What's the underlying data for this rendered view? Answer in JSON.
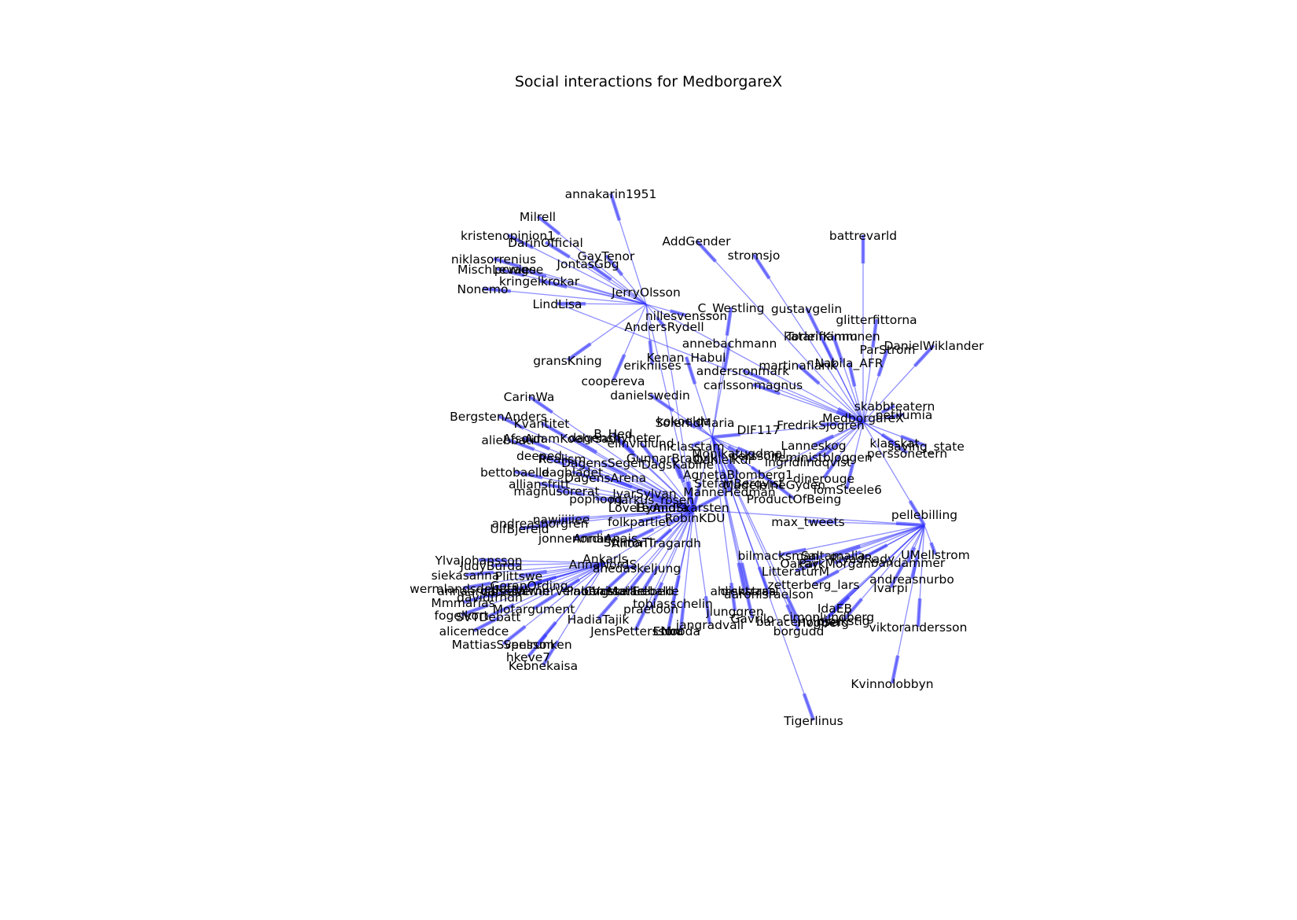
{
  "title": "Social interactions for MedborgareX",
  "colors": {
    "edge": "#3333ff",
    "label": "#000000",
    "background": "#ffffff"
  },
  "nodes": [
    "annakarin1951",
    "Milrell",
    "kristenopinion1",
    "DarinOfficial",
    "GayTenor",
    "niklasorrenius",
    "JontasGbg",
    "MischLevage",
    "pcwiese",
    "kringelkrokar",
    "Nonemo",
    "JerryOlsson",
    "AddGender",
    "stromsjo",
    "battrevarld",
    "LindLisa",
    "C_Westling",
    "gustavgelin",
    "nillesvensson",
    "AndersRydell",
    "glitterfittorna",
    "katarinamm",
    "TorleifKinnunen",
    "DanielWiklander",
    "ParStrom",
    "annebachmann",
    "gransKning",
    "Kenan_Habul",
    "erikniises",
    "martinaflarik",
    "Nabila_AFR",
    "andersronmark",
    "coopereva",
    "carlssonmagnus",
    "CarinWa",
    "danielswedin",
    "skabbteatern",
    "MedborgareX",
    "petilumia",
    "BergstenAnders",
    "Kvantitet",
    "kokoelda",
    "SolerlidMaria",
    "DIF117",
    "FredrikSjogren",
    "B_Hed",
    "aliebbati",
    "Afsoun",
    "AdamKoehrsadi",
    "elinvidlund",
    "Lanneskog",
    "klasskat",
    "saving_state",
    "dagensnyheter",
    "niclasstam",
    "Monikatugdmal",
    "persson",
    "feministbloggen",
    "perssonetern",
    "deeped",
    "Realism",
    "GunnarBradvik",
    "DagensSegel",
    "DagsKabine",
    "ingridlindqvist",
    "bettobaelle",
    "dagbladet",
    "DanielKdr",
    "AgnetaBlomberg1",
    "dinerouge",
    "alliansfritt",
    "DagensArena",
    "StefanBerqvist",
    "MadeleineGyden",
    "magnusorerat",
    "TomSteele6",
    "IvarSylvan",
    "ManneHedman",
    "ProductOfBeing",
    "pophoog",
    "markus_rosen",
    "LoveByAndra",
    "LeonidSkarsten",
    "RobinKDU",
    "andreasnorgren",
    "nawiiiiiee",
    "folkpartiet",
    "max_tweets",
    "pellebilling",
    "UlfBjereld",
    "jonnenordin",
    "AnnaAnais",
    "AntonTragardh",
    "StilmaTi",
    "bilmacksman",
    "Oakay",
    "Saltamalia",
    "ParkMorgan",
    "RiyadRady",
    "UMellstrom",
    "Ankarls",
    "bandammer",
    "YlvaJohansson",
    "JudyBurda",
    "AnnaNordS",
    "ahedaskeljung",
    "LitteraturM",
    "andreasnurbo",
    "siekasanna",
    "Plittswe",
    "zetterberg_lars",
    "Ivarpi",
    "wermlandsdebatt",
    "GoranOrding",
    "annaarvidsson",
    "danielalwin",
    "VernerVeinberg",
    "PaulVassaille",
    "disktrasa",
    "ahrenstrasl",
    "Mmmarias",
    "davidfrndh",
    "ChristerEdbald",
    "Motarebelle",
    "tobiasschelin",
    "aaronisraelson",
    "IdaEB",
    "fogelkort",
    "Motargument",
    "praetoon",
    "jlunggren",
    "cimonlundberg",
    "SVTDebatt",
    "HadiaTajik",
    "Gavrilo",
    "baracenvinsel",
    "Hogberg",
    "bjorkstig",
    "viktorandersson",
    "alicemedce",
    "jangradvall",
    "borgudd",
    "JensPettersson",
    "Ebba",
    "Nooda",
    "MattiasSvensson",
    "Spelrunken",
    "hkeve7",
    "Kebnekaisa",
    "Kvinnolobbyn",
    "Tigerlinus"
  ]
}
